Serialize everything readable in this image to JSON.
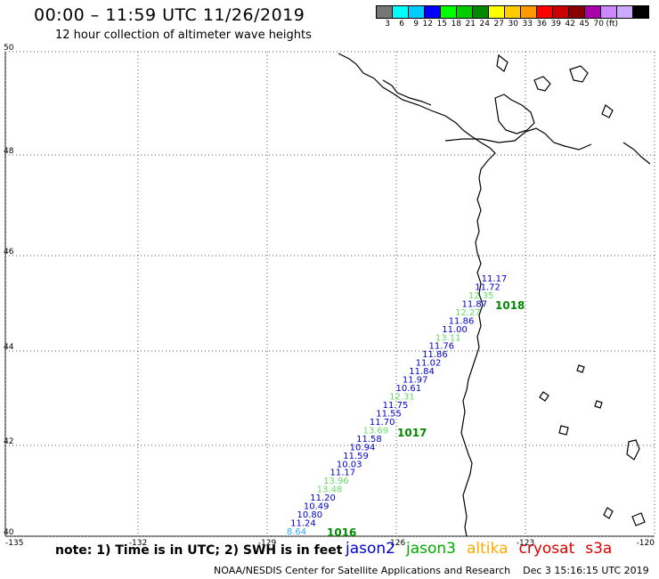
{
  "title": "00:00 – 11:59 UTC 11/26/2019",
  "subtitle": "12 hour collection of altimeter wave heights",
  "color_scale": {
    "colors": [
      "#777777",
      "#00ffff",
      "#00ccff",
      "#0000ff",
      "#00ff00",
      "#00cc00",
      "#008800",
      "#ffff00",
      "#ffcc00",
      "#ff9900",
      "#ff0000",
      "#cc0000",
      "#880000",
      "#aa00aa",
      "#cc88ff",
      "#ccaaff",
      "#000000"
    ],
    "labels": [
      "3",
      "6",
      "9",
      "12",
      "15",
      "18",
      "21",
      "24",
      "27",
      "30",
      "33",
      "36",
      "39",
      "42",
      "45",
      "70",
      "(ft)"
    ]
  },
  "axes": {
    "lat_labels": [
      "50",
      "48",
      "46",
      "44",
      "42",
      "40"
    ],
    "lon_labels": [
      "-135",
      "-132",
      "-129",
      "-126",
      "-123",
      "-120"
    ]
  },
  "pressure_labels": [
    "1018",
    "1017",
    "1016"
  ],
  "readings": [
    {
      "v": "11.17",
      "c": "#0000cc"
    },
    {
      "v": "11.72",
      "c": "#0000cc"
    },
    {
      "v": "12.35",
      "c": "#66dd66"
    },
    {
      "v": "11.87",
      "c": "#0000cc"
    },
    {
      "v": "12.27",
      "c": "#66dd66"
    },
    {
      "v": "11.86",
      "c": "#0000cc"
    },
    {
      "v": "11.00",
      "c": "#0000cc"
    },
    {
      "v": "13.11",
      "c": "#66dd66"
    },
    {
      "v": "11.76",
      "c": "#0000cc"
    },
    {
      "v": "11.86",
      "c": "#0000cc"
    },
    {
      "v": "11.02",
      "c": "#0000cc"
    },
    {
      "v": "11.84",
      "c": "#0000cc"
    },
    {
      "v": "11.97",
      "c": "#0000cc"
    },
    {
      "v": "10.61",
      "c": "#0000cc"
    },
    {
      "v": "12.31",
      "c": "#66dd66"
    },
    {
      "v": "11.75",
      "c": "#0000cc"
    },
    {
      "v": "11.55",
      "c": "#0000cc"
    },
    {
      "v": "11.70",
      "c": "#0000cc"
    },
    {
      "v": "13.69",
      "c": "#66dd66"
    },
    {
      "v": "11.58",
      "c": "#0000cc"
    },
    {
      "v": "10.94",
      "c": "#0000cc"
    },
    {
      "v": "11.59",
      "c": "#0000cc"
    },
    {
      "v": "10.03",
      "c": "#0000cc"
    },
    {
      "v": "11.17",
      "c": "#0000cc"
    },
    {
      "v": "13.96",
      "c": "#66dd66"
    },
    {
      "v": "13.48",
      "c": "#66dd66"
    },
    {
      "v": "11.20",
      "c": "#0000cc"
    },
    {
      "v": "10.49",
      "c": "#0000cc"
    },
    {
      "v": "10.80",
      "c": "#0000cc"
    },
    {
      "v": "11.24",
      "c": "#0000cc"
    },
    {
      "v": "8.64",
      "c": "#33aaff"
    }
  ],
  "note": "note: 1) Time is in UTC; 2) SWH is in feet",
  "legend": [
    {
      "label": "jason2",
      "color": "#0000cc"
    },
    {
      "label": "jason3",
      "color": "#00aa00"
    },
    {
      "label": "altika",
      "color": "#ffaa00"
    },
    {
      "label": "cryosat",
      "color": "#dd0000"
    },
    {
      "label": "s3a",
      "color": "#dd0000"
    }
  ],
  "footer": {
    "org": "NOAA/NESDIS Center for Satellite Applications and Research",
    "date": "Dec  3 15:16:15 UTC 2019"
  }
}
